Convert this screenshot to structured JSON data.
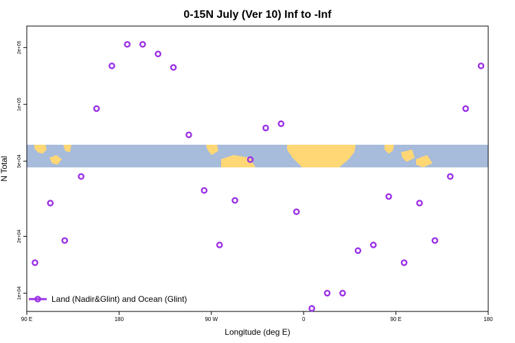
{
  "chart_data": {
    "type": "scatter",
    "title": "0-15N July (Ver 10)   Inf to -Inf",
    "xlabel": "Longitude (deg E)",
    "ylabel": "N Total",
    "y_scale": "log",
    "x_ticks": [
      {
        "lon": 90,
        "label": "90 E"
      },
      {
        "lon": 180,
        "label": "180"
      },
      {
        "lon": 270,
        "label": "90 W"
      },
      {
        "lon": 360,
        "label": "0"
      },
      {
        "lon": 450,
        "label": "90 E"
      },
      {
        "lon": 540,
        "label": "180"
      }
    ],
    "xlim": [
      90,
      540
    ],
    "ylim": [
      8000,
      260000
    ],
    "y_ticks": [
      {
        "value": 10000,
        "label": "1e+04"
      },
      {
        "value": 20000,
        "label": "2e+04"
      },
      {
        "value": 50000,
        "label": "5e+04"
      },
      {
        "value": 100000,
        "label": "1e+05"
      },
      {
        "value": 200000,
        "label": "2e+05"
      }
    ],
    "series": [
      {
        "name": "Land (Nadir&Glint) and Ocean (Glint)",
        "color": "#9b30e6",
        "points": [
          {
            "x": 98,
            "y": 14500
          },
          {
            "x": 113,
            "y": 30000
          },
          {
            "x": 127,
            "y": 19000
          },
          {
            "x": 143,
            "y": 41500
          },
          {
            "x": 158,
            "y": 95000
          },
          {
            "x": 173,
            "y": 160000
          },
          {
            "x": 188,
            "y": 208000
          },
          {
            "x": 203,
            "y": 208000
          },
          {
            "x": 218,
            "y": 185000
          },
          {
            "x": 233,
            "y": 157000
          },
          {
            "x": 248,
            "y": 69000
          },
          {
            "x": 263,
            "y": 35000
          },
          {
            "x": 278,
            "y": 18000
          },
          {
            "x": 293,
            "y": 31000
          },
          {
            "x": 308,
            "y": 51000
          },
          {
            "x": 323,
            "y": 75000
          },
          {
            "x": 338,
            "y": 79000
          },
          {
            "x": 353,
            "y": 27000
          },
          {
            "x": 368,
            "y": 8300
          },
          {
            "x": 383,
            "y": 10000
          },
          {
            "x": 398,
            "y": 10000
          },
          {
            "x": 413,
            "y": 16800
          },
          {
            "x": 428,
            "y": 18000
          },
          {
            "x": 443,
            "y": 32500
          },
          {
            "x": 458,
            "y": 14500
          },
          {
            "x": 473,
            "y": 30000
          },
          {
            "x": 488,
            "y": 19000
          },
          {
            "x": 503,
            "y": 41500
          },
          {
            "x": 518,
            "y": 95000
          },
          {
            "x": 533,
            "y": 160000
          }
        ]
      }
    ],
    "legend": {
      "position": "bottom-left"
    },
    "background_map": {
      "ocean_color": "#a7bbdb",
      "land_color": "#ffd774"
    }
  }
}
